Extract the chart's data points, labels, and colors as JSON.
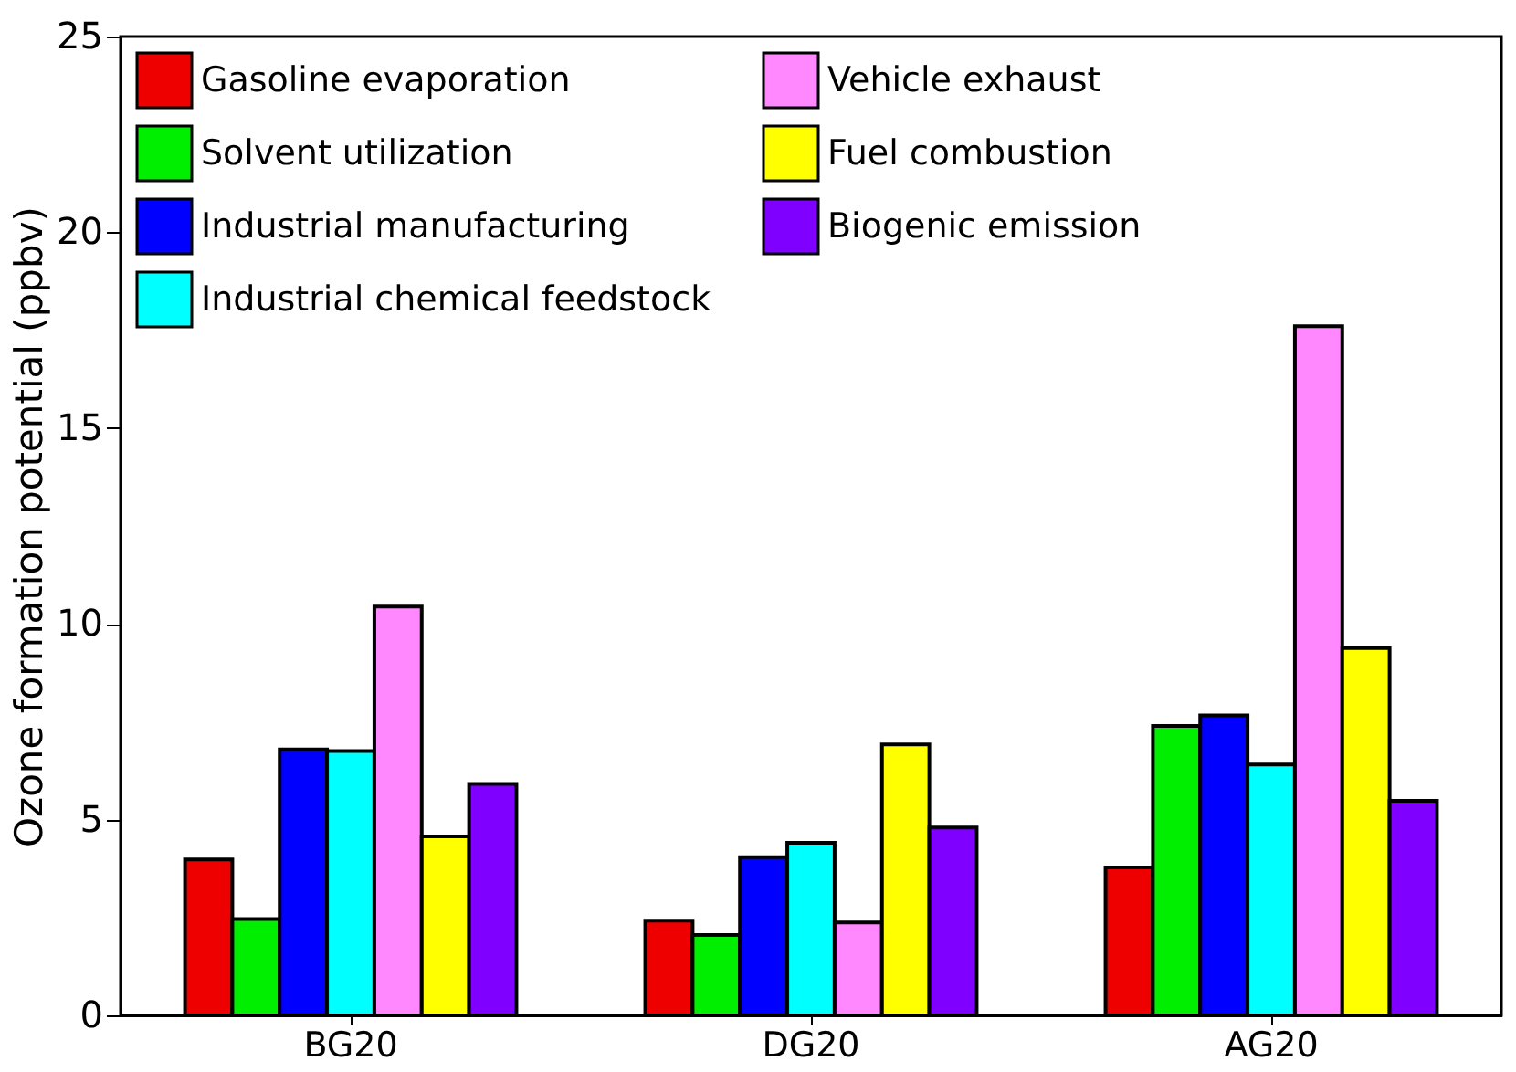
{
  "chart_data": {
    "type": "bar",
    "ylabel": "Ozone formation potential (ppbv)",
    "categories": [
      "BG20",
      "DG20",
      "AG20"
    ],
    "series": [
      {
        "name": "Gasoline evaporation",
        "color": "#ee0000",
        "values": [
          3.98,
          2.42,
          3.78
        ]
      },
      {
        "name": "Solvent utilization",
        "color": "#00ee00",
        "values": [
          2.46,
          2.05,
          7.39
        ]
      },
      {
        "name": "Industrial manufacturing",
        "color": "#0000ff",
        "values": [
          6.79,
          4.04,
          7.66
        ]
      },
      {
        "name": "Industrial chemical feedstock",
        "color": "#00ffff",
        "values": [
          6.75,
          4.41,
          6.41
        ]
      },
      {
        "name": "Vehicle exhaust",
        "color": "#ff88ff",
        "values": [
          10.44,
          2.37,
          17.6
        ]
      },
      {
        "name": "Fuel combustion",
        "color": "#ffff00",
        "values": [
          4.57,
          6.92,
          9.38
        ]
      },
      {
        "name": "Biogenic emission",
        "color": "#8000ff",
        "values": [
          5.91,
          4.8,
          5.48
        ]
      }
    ],
    "ylim": [
      0,
      25
    ],
    "yticks": [
      0,
      5,
      10,
      15,
      20,
      25
    ],
    "grid": false,
    "legend": "top left"
  }
}
